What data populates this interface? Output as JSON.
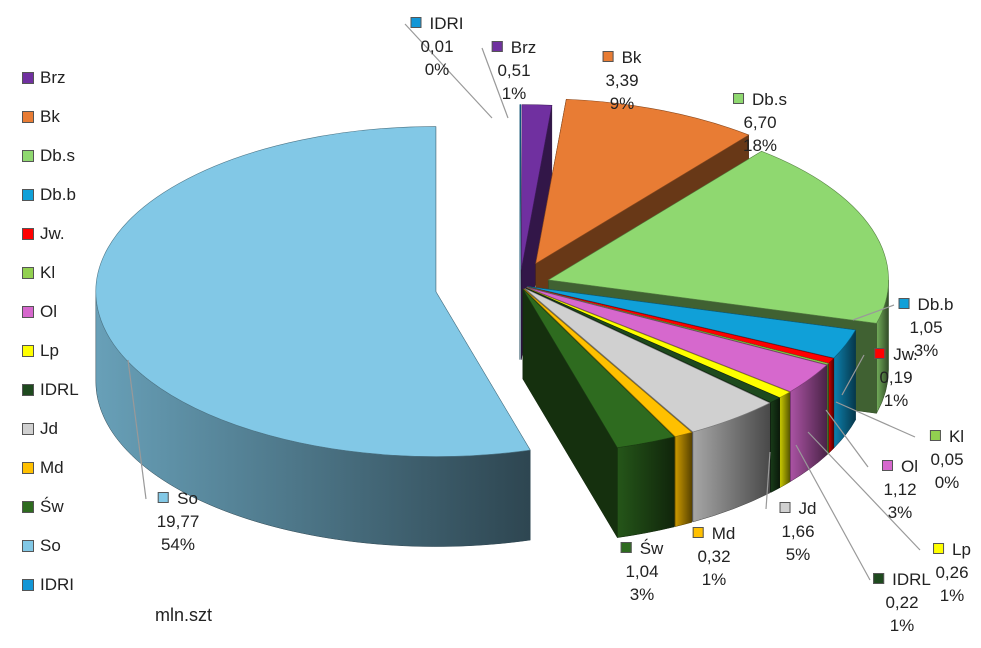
{
  "chart_data": {
    "type": "pie",
    "unit_label": "mln.szt",
    "legend_placement": "left",
    "legend": [
      "Brz",
      "Bk",
      "Db.s",
      "Db.b",
      "Jw.",
      "Kl",
      "Ol",
      "Lp",
      "IDRL",
      "Jd",
      "Md",
      "Św",
      "So",
      "IDRI"
    ],
    "slices": [
      {
        "name": "IDRI",
        "value": "0,01",
        "percent": "0%",
        "color": "#1396d6"
      },
      {
        "name": "Brz",
        "value": "0,51",
        "percent": "1%",
        "color": "#7030a0"
      },
      {
        "name": "Bk",
        "value": "3,39",
        "percent": "9%",
        "color": "#e87c34"
      },
      {
        "name": "Db.s",
        "value": "6,70",
        "percent": "18%",
        "color": "#8fd870"
      },
      {
        "name": "Db.b",
        "value": "1,05",
        "percent": "3%",
        "color": "#10a0d8"
      },
      {
        "name": "Jw.",
        "value": "0,19",
        "percent": "1%",
        "color": "#ff0000"
      },
      {
        "name": "Kl",
        "value": "0,05",
        "percent": "0%",
        "color": "#92d050"
      },
      {
        "name": "Ol",
        "value": "1,12",
        "percent": "3%",
        "color": "#d668cd"
      },
      {
        "name": "Lp",
        "value": "0,26",
        "percent": "1%",
        "color": "#ffff00"
      },
      {
        "name": "IDRL",
        "value": "0,22",
        "percent": "1%",
        "color": "#1e4a1e"
      },
      {
        "name": "Jd",
        "value": "1,66",
        "percent": "5%",
        "color": "#d0d0d0"
      },
      {
        "name": "Md",
        "value": "0,32",
        "percent": "1%",
        "color": "#ffc000"
      },
      {
        "name": "Św",
        "value": "1,04",
        "percent": "3%",
        "color": "#2e6b1f"
      },
      {
        "name": "So",
        "value": "19,77",
        "percent": "54%",
        "color": "#82c8e6"
      }
    ]
  }
}
